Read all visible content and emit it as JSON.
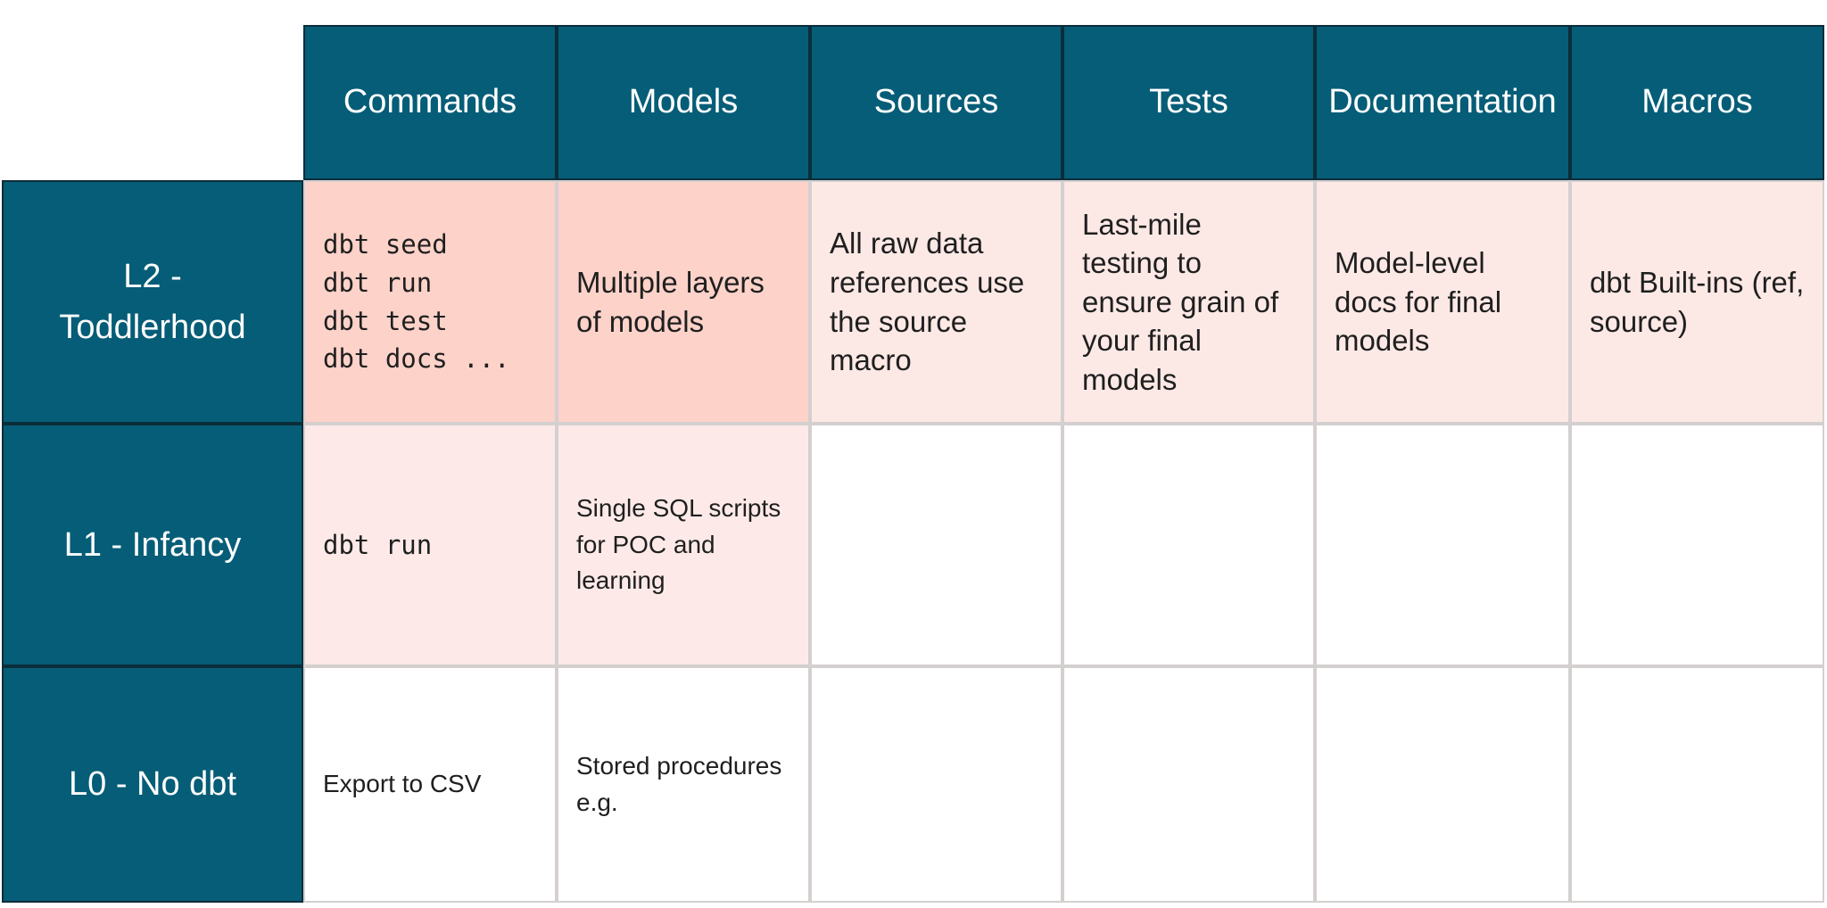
{
  "colors": {
    "page-bg": "#ffffff",
    "teal": "#065d77",
    "teal-border": "#0b2d3a",
    "pink-strong": "#fcd2c9",
    "pink-light": "#fce9e5",
    "pink-faint": "#fdeae8",
    "grid-border": "#d4d0cf",
    "text-dark": "#1f1f1f",
    "text-light": "#ffffff"
  },
  "table": {
    "columns": [
      {
        "label": "Commands"
      },
      {
        "label": "Models"
      },
      {
        "label": "Sources"
      },
      {
        "label": "Tests"
      },
      {
        "label": "Documentation"
      },
      {
        "label": "Macros"
      }
    ],
    "rows": [
      {
        "label": "L2 - Toddlerhood",
        "label_lines": [
          "L2 -",
          "Toddlerhood"
        ],
        "cells": {
          "commands": {
            "code_lines": [
              "dbt seed",
              "dbt run",
              "dbt test",
              "dbt docs ..."
            ]
          },
          "models": {
            "text": "Multiple layers of models"
          },
          "sources": {
            "text": "All raw data references use the source macro"
          },
          "tests": {
            "text": "Last-mile testing to ensure grain of your final models"
          },
          "documentation": {
            "text": "Model-level docs for final models"
          },
          "macros": {
            "text": "dbt Built-ins (ref, source)"
          }
        }
      },
      {
        "label": "L1 - Infancy",
        "label_lines": [
          "L1 - Infancy"
        ],
        "cells": {
          "commands": {
            "code_lines": [
              "dbt run"
            ]
          },
          "models": {
            "text": "Single SQL scripts for POC and learning"
          }
        }
      },
      {
        "label": "L0 - No dbt",
        "label_lines": [
          "L0 - No dbt"
        ],
        "cells": {
          "commands": {
            "text": "Export to CSV"
          },
          "models": {
            "text": "Stored procedures e.g."
          }
        }
      }
    ]
  }
}
